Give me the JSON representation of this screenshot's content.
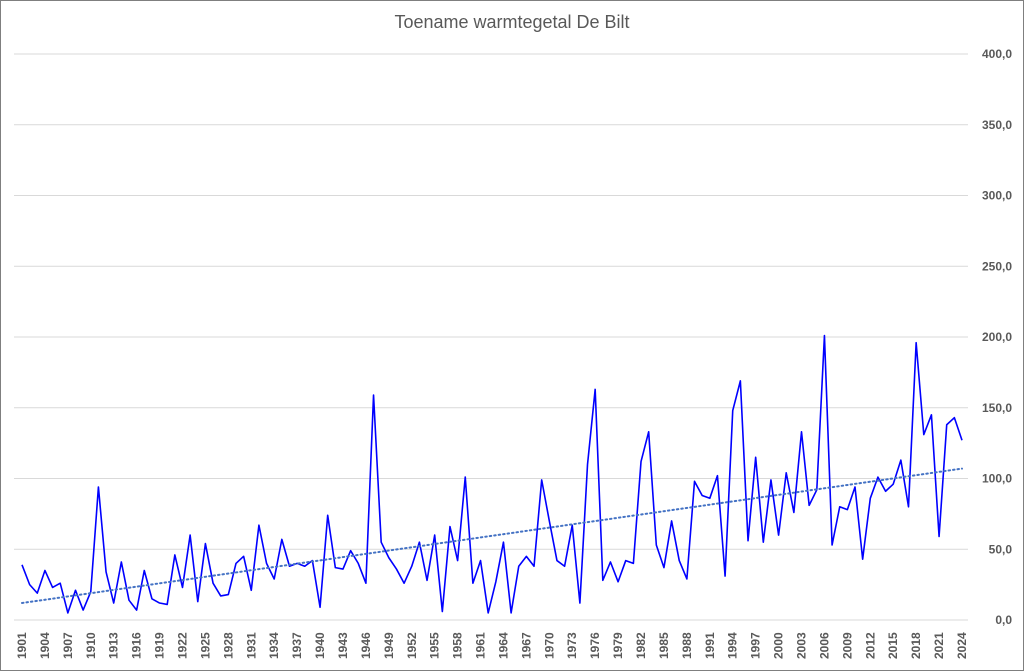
{
  "chart_data": {
    "type": "line",
    "title": "Toename warmtegetal De Bilt",
    "xlabel": "",
    "ylabel": "",
    "ylim": [
      0,
      400
    ],
    "yticks": [
      "0,0",
      "50,0",
      "100,0",
      "150,0",
      "200,0",
      "250,0",
      "300,0",
      "350,0",
      "400,0"
    ],
    "ytick_values": [
      0,
      50,
      100,
      150,
      200,
      250,
      300,
      350,
      400
    ],
    "x_start": 1901,
    "x_end": 2024,
    "xtick_step": 3,
    "grid": true,
    "legend": "none",
    "series": [
      {
        "color": "#0000ff",
        "line_style": "solid",
        "values": [
          39,
          25,
          19,
          35,
          23,
          26,
          5,
          21,
          7,
          20,
          94,
          34,
          12,
          41,
          14,
          7,
          35,
          15,
          12,
          11,
          46,
          23,
          60,
          13,
          54,
          26,
          17,
          18,
          40,
          45,
          21,
          67,
          40,
          29,
          57,
          38,
          40,
          38,
          42,
          9,
          74,
          37,
          36,
          49,
          40,
          26,
          159,
          55,
          44,
          36,
          26,
          38,
          55,
          28,
          60,
          6,
          66,
          42,
          101,
          26,
          42,
          5,
          27,
          55,
          5,
          38,
          45,
          38,
          99,
          70,
          42,
          38,
          67,
          12,
          110,
          163,
          28,
          41,
          27,
          42,
          40,
          112,
          133,
          53,
          37,
          70,
          42,
          29,
          98,
          88,
          86,
          102,
          31,
          148,
          169,
          56,
          115,
          55,
          99,
          60,
          104,
          76,
          133,
          81,
          92,
          201,
          53,
          80,
          78,
          94,
          43,
          86,
          101,
          91,
          96,
          113,
          80,
          196,
          131,
          145,
          59,
          138,
          143,
          127
        ]
      },
      {
        "color": "#4472c4",
        "line_style": "dotted",
        "type": "linear-trend",
        "values_at_ends": [
          12,
          107
        ]
      }
    ]
  }
}
